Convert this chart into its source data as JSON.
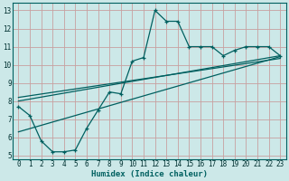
{
  "xlabel": "Humidex (Indice chaleur)",
  "xlim": [
    -0.5,
    23.5
  ],
  "ylim": [
    4.8,
    13.4
  ],
  "xticks": [
    0,
    1,
    2,
    3,
    4,
    5,
    6,
    7,
    8,
    9,
    10,
    11,
    12,
    13,
    14,
    15,
    16,
    17,
    18,
    19,
    20,
    21,
    22,
    23
  ],
  "yticks": [
    5,
    6,
    7,
    8,
    9,
    10,
    11,
    12,
    13
  ],
  "bg_color": "#cce8e8",
  "grid_color": "#c8a0a0",
  "line_color": "#006060",
  "main_line_x": [
    0,
    1,
    2,
    3,
    4,
    5,
    6,
    7,
    8,
    9,
    10,
    11,
    12,
    13,
    14,
    15,
    16,
    17,
    18,
    19,
    20,
    21,
    22,
    23
  ],
  "main_line_y": [
    7.7,
    7.2,
    5.8,
    5.2,
    5.2,
    5.3,
    6.5,
    7.5,
    8.5,
    8.4,
    10.2,
    10.4,
    13.0,
    12.4,
    12.4,
    11.0,
    11.0,
    11.0,
    10.5,
    10.8,
    11.0,
    11.0,
    11.0,
    10.5
  ],
  "line2_x": [
    0,
    23
  ],
  "line2_y": [
    8.0,
    10.5
  ],
  "line3_x": [
    0,
    23
  ],
  "line3_y": [
    8.2,
    10.35
  ],
  "line4_x": [
    0,
    23
  ],
  "line4_y": [
    6.3,
    10.45
  ],
  "tick_fontsize": 5.5,
  "xlabel_fontsize": 6.5
}
